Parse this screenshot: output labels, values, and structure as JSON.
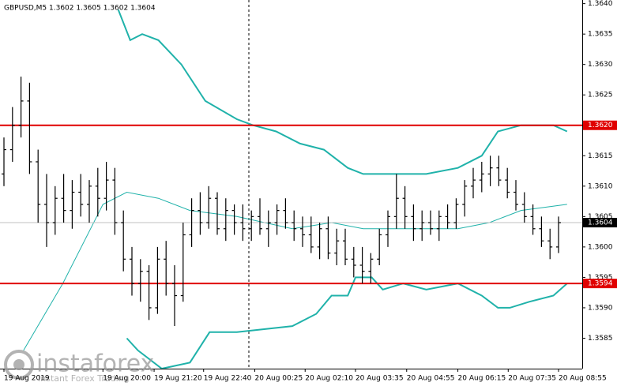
{
  "chart_data": {
    "type": "candlestick",
    "title": "GBPUSD,M5 1.3602 1.3605 1.3602 1.3604",
    "ylim": [
      1.358,
      1.36406
    ],
    "yticks": [
      {
        "value": 1.364,
        "label": "1.3640"
      },
      1.3635,
      {
        "value": 1.363,
        "label": "1.3630"
      },
      1.3625,
      {
        "value": 1.362,
        "label": "1.3620"
      },
      1.3615,
      {
        "value": 1.361,
        "label": "1.3610"
      },
      1.3605,
      {
        "value": 1.36,
        "label": "1.3600"
      },
      1.3595,
      {
        "value": 1.359,
        "label": "1.3590"
      },
      1.3585
    ],
    "xticks": [
      {
        "value": 0,
        "label": "19 Aug 2019"
      },
      {
        "value": 11.6,
        "label": "19 Aug 20:00"
      },
      {
        "value": 17.6,
        "label": "19 Aug 21:20"
      },
      {
        "value": 23.4,
        "label": "19 Aug 22:40"
      },
      {
        "value": 29.4,
        "label": "20 Aug 00:25"
      },
      {
        "value": 35.3,
        "label": "20 Aug 02:10"
      },
      {
        "value": 41.2,
        "label": "20 Aug 03:35"
      },
      {
        "value": 47.2,
        "label": "20 Aug 04:55"
      },
      {
        "value": 53.2,
        "label": "20 Aug 06:15"
      },
      {
        "value": 59.1,
        "label": "20 Aug 07:35"
      },
      {
        "value": 65,
        "label": "20 Aug 08:55"
      }
    ],
    "candle_color": "#000000",
    "ohlc": [
      [
        1.3612,
        1.3618,
        1.361,
        1.3616
      ],
      [
        1.3616,
        1.3623,
        1.3614,
        1.362
      ],
      [
        1.362,
        1.3628,
        1.3618,
        1.3624
      ],
      [
        1.3624,
        1.3627,
        1.3612,
        1.3614
      ],
      [
        1.3614,
        1.3616,
        1.3604,
        1.3607
      ],
      [
        1.3607,
        1.3612,
        1.36,
        1.3604
      ],
      [
        1.3604,
        1.361,
        1.3602,
        1.3608
      ],
      [
        1.3608,
        1.3612,
        1.3604,
        1.3606
      ],
      [
        1.3606,
        1.3611,
        1.3603,
        1.3609
      ],
      [
        1.3609,
        1.3612,
        1.3605,
        1.3607
      ],
      [
        1.3607,
        1.3611,
        1.3604,
        1.361
      ],
      [
        1.361,
        1.3613,
        1.3605,
        1.3608
      ],
      [
        1.3608,
        1.3614,
        1.3606,
        1.3611
      ],
      [
        1.3611,
        1.3613,
        1.3602,
        1.3604
      ],
      [
        1.3604,
        1.3606,
        1.3596,
        1.3598
      ],
      [
        1.3598,
        1.36,
        1.3592,
        1.3594
      ],
      [
        1.3594,
        1.3598,
        1.3591,
        1.3596
      ],
      [
        1.3596,
        1.3597,
        1.3588,
        1.359
      ],
      [
        1.359,
        1.36,
        1.3589,
        1.3598
      ],
      [
        1.3598,
        1.3601,
        1.3592,
        1.3594
      ],
      [
        1.3594,
        1.3597,
        1.3587,
        1.3592
      ],
      [
        1.3592,
        1.3604,
        1.3591,
        1.3602
      ],
      [
        1.3602,
        1.3608,
        1.36,
        1.3606
      ],
      [
        1.3606,
        1.3609,
        1.3602,
        1.3604
      ],
      [
        1.3604,
        1.361,
        1.3603,
        1.3608
      ],
      [
        1.3608,
        1.3609,
        1.3602,
        1.3603
      ],
      [
        1.3603,
        1.3608,
        1.3601,
        1.3606
      ],
      [
        1.3606,
        1.3607,
        1.3602,
        1.3604
      ],
      [
        1.3604,
        1.3607,
        1.3601,
        1.3603
      ],
      [
        1.3603,
        1.3606,
        1.3601,
        1.3605
      ],
      [
        1.3605,
        1.3608,
        1.3602,
        1.3603
      ],
      [
        1.3603,
        1.3606,
        1.36,
        1.3604
      ],
      [
        1.3604,
        1.3607,
        1.3602,
        1.3606
      ],
      [
        1.3606,
        1.3608,
        1.3603,
        1.3604
      ],
      [
        1.3604,
        1.3606,
        1.3601,
        1.3603
      ],
      [
        1.3603,
        1.3605,
        1.36,
        1.3602
      ],
      [
        1.3602,
        1.3605,
        1.3599,
        1.36
      ],
      [
        1.36,
        1.3604,
        1.3598,
        1.3603
      ],
      [
        1.3603,
        1.3605,
        1.3598,
        1.3599
      ],
      [
        1.3599,
        1.3603,
        1.3597,
        1.3601
      ],
      [
        1.3601,
        1.3603,
        1.3597,
        1.3598
      ],
      [
        1.3598,
        1.36,
        1.3595,
        1.3597
      ],
      [
        1.3597,
        1.36,
        1.3594,
        1.3596
      ],
      [
        1.3596,
        1.3599,
        1.3594,
        1.3598
      ],
      [
        1.3598,
        1.3603,
        1.3597,
        1.3602
      ],
      [
        1.3602,
        1.3606,
        1.36,
        1.3605
      ],
      [
        1.3605,
        1.3612,
        1.3603,
        1.3608
      ],
      [
        1.3608,
        1.361,
        1.3603,
        1.3605
      ],
      [
        1.3605,
        1.3607,
        1.3601,
        1.3603
      ],
      [
        1.3603,
        1.3606,
        1.3601,
        1.3604
      ],
      [
        1.3604,
        1.3606,
        1.3602,
        1.3603
      ],
      [
        1.3603,
        1.3606,
        1.3601,
        1.3605
      ],
      [
        1.3605,
        1.3607,
        1.3603,
        1.3604
      ],
      [
        1.3604,
        1.3608,
        1.3603,
        1.3607
      ],
      [
        1.3607,
        1.3611,
        1.3605,
        1.361
      ],
      [
        1.361,
        1.3613,
        1.3608,
        1.3611
      ],
      [
        1.3611,
        1.3614,
        1.3609,
        1.3612
      ],
      [
        1.3612,
        1.3615,
        1.361,
        1.3613
      ],
      [
        1.3613,
        1.3615,
        1.361,
        1.3611
      ],
      [
        1.3611,
        1.3613,
        1.3608,
        1.3609
      ],
      [
        1.3609,
        1.3611,
        1.3606,
        1.3607
      ],
      [
        1.3607,
        1.3609,
        1.3604,
        1.3605
      ],
      [
        1.3605,
        1.3607,
        1.3602,
        1.3603
      ],
      [
        1.3603,
        1.3605,
        1.36,
        1.3601
      ],
      [
        1.3601,
        1.3603,
        1.3598,
        1.36
      ],
      [
        1.36,
        1.3605,
        1.3599,
        1.3604
      ]
    ],
    "band_color": "#20b2aa",
    "bands": {
      "upper": {
        "x": [
          13.4,
          14.8,
          16.2,
          18.1,
          20.8,
          23.6,
          27.3,
          29.2,
          31.9,
          34.7,
          37.5,
          40.3,
          42.1,
          44.9,
          49.5,
          53.2,
          56,
          57.9,
          60.6,
          64.4,
          66
        ],
        "values": [
          1.3639,
          1.3634,
          1.3635,
          1.3634,
          1.363,
          1.3624,
          1.3621,
          1.362,
          1.3619,
          1.3617,
          1.3616,
          1.3613,
          1.3612,
          1.3612,
          1.3612,
          1.3613,
          1.3615,
          1.3619,
          1.362,
          1.362,
          1.3619
        ]
      },
      "middle": {
        "x": [
          2.3,
          6.9,
          11.6,
          14.4,
          18.1,
          21.8,
          27.3,
          33.8,
          38.4,
          42.1,
          45.8,
          49.5,
          53.2,
          56.9,
          60.6,
          66
        ],
        "values": [
          1.3583,
          1.3594,
          1.3607,
          1.3609,
          1.3608,
          1.3606,
          1.3605,
          1.3603,
          1.3604,
          1.3603,
          1.3603,
          1.3603,
          1.3603,
          1.3604,
          1.3606,
          1.3607
        ]
      },
      "lower": {
        "x": [
          14.4,
          15.7,
          18.5,
          21.8,
          24.1,
          27.3,
          33.8,
          36.6,
          38.4,
          40.3,
          41.2,
          43.1,
          44.4,
          46.8,
          49.5,
          53.2,
          56,
          57.9,
          59.3,
          61.6,
          64.4,
          66
        ],
        "values": [
          1.3585,
          1.3583,
          1.358,
          1.3581,
          1.3586,
          1.3586,
          1.3587,
          1.3589,
          1.3592,
          1.3592,
          1.3595,
          1.3595,
          1.3593,
          1.3594,
          1.3593,
          1.3594,
          1.3592,
          1.359,
          1.359,
          1.3591,
          1.3592,
          1.3594
        ]
      }
    },
    "level_color": "#e00000",
    "levels": [
      {
        "value": 1.362,
        "label": "1.3620"
      },
      1.3594
    ],
    "last_price": 1.3604,
    "watermark": {
      "brand": "instaforex",
      "tagline": "Instant Forex Trading"
    }
  }
}
